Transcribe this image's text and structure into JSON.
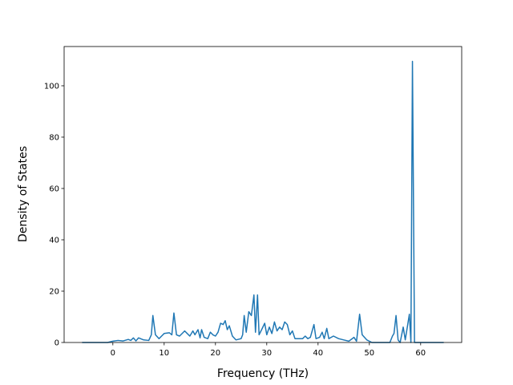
{
  "chart_data": {
    "type": "line",
    "xlabel": "Frequency (THz)",
    "ylabel": "Density of States",
    "x": [
      -6,
      -1,
      0,
      1,
      2,
      3,
      3.5,
      4,
      4.5,
      5,
      6,
      7,
      7.5,
      7.8,
      8.3,
      9,
      9.5,
      10,
      11,
      11.5,
      11.9,
      12.4,
      13,
      14,
      14.5,
      15,
      15.6,
      16,
      16.6,
      17,
      17.3,
      17.8,
      18.5,
      19,
      19.5,
      20,
      20.5,
      21,
      21.5,
      21.9,
      22.3,
      22.7,
      23.3,
      24,
      25,
      25.3,
      25.6,
      26,
      26.5,
      27,
      27.5,
      27.8,
      28.2,
      28.5,
      29,
      29.6,
      30,
      30.5,
      31,
      31.5,
      32,
      32.5,
      33,
      33.5,
      34,
      34.5,
      35,
      35.5,
      36,
      37,
      37.5,
      38,
      38.5,
      39.2,
      39.6,
      40.3,
      40.8,
      41.2,
      41.7,
      42.1,
      43,
      44,
      45,
      46,
      47,
      47.5,
      48.1,
      48.6,
      49.5,
      50.5,
      54,
      54.5,
      54.8,
      55.2,
      55.6,
      56,
      56.6,
      57,
      57.8,
      58.1,
      58.4,
      58.8,
      64.5
    ],
    "series": [
      {
        "color": "#1f77b4",
        "values": [
          0,
          0,
          0.5,
          0.8,
          0.6,
          1.2,
          0.8,
          1.8,
          0.6,
          1.8,
          1,
          0.8,
          3,
          10.5,
          3,
          1.5,
          2.5,
          3.5,
          3.8,
          3,
          11.5,
          3,
          2.5,
          4.5,
          3.5,
          2.5,
          4.5,
          3,
          5,
          1.8,
          5,
          2,
          1.5,
          4,
          3,
          2.5,
          4,
          7.5,
          7,
          8.5,
          5,
          6.5,
          2.5,
          1,
          1.5,
          3,
          10.5,
          4,
          12,
          10.5,
          18.5,
          4,
          18.5,
          3,
          5,
          7.5,
          3,
          6,
          3.5,
          8,
          4.5,
          6,
          5,
          8,
          7,
          3,
          4.5,
          1.5,
          1.5,
          1.5,
          2.5,
          1.5,
          2,
          7,
          1.5,
          2,
          4,
          1.5,
          5.5,
          1.5,
          2.5,
          1.5,
          1,
          0.5,
          2,
          0.5,
          11,
          3,
          1,
          0,
          0,
          2.5,
          3.5,
          10.5,
          1,
          0,
          6,
          1,
          11,
          0,
          109.5,
          0,
          0
        ]
      }
    ],
    "xlim": [
      -9.5,
      68
    ],
    "xticks": [
      0,
      10,
      20,
      30,
      40,
      50,
      60
    ],
    "ylim": [
      0,
      115.3
    ],
    "yticks": [
      0,
      20,
      40,
      60,
      80,
      100
    ]
  }
}
